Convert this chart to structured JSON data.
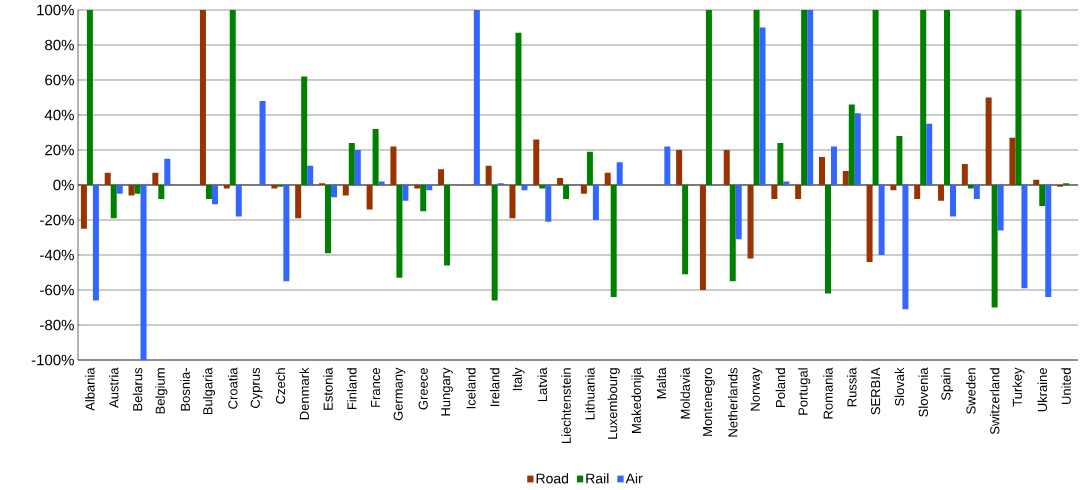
{
  "chart_data": {
    "type": "bar",
    "categories": [
      "Albania",
      "Austria",
      "Belarus",
      "Belgium",
      "Bosnia-",
      "Bulgaria",
      "Croatia",
      "Cyprus",
      "Czech",
      "Denmark",
      "Estonia",
      "Finland",
      "France",
      "Germany",
      "Greece",
      "Hungary",
      "Iceland",
      "Ireland",
      "Italy",
      "Latvia",
      "Liechtenstein",
      "Lithuania",
      "Luxembourg",
      "Makedonija",
      "Malta",
      "Moldavia",
      "Montenegro",
      "Netherlands",
      "Norway",
      "Poland",
      "Portugal",
      "Romania",
      "Russia",
      "SERBIA",
      "Slovak",
      "Slovenia",
      "Spain",
      "Sweden",
      "Switzerland",
      "Turkey",
      "Ukraine",
      "United"
    ],
    "series": [
      {
        "name": "Road",
        "color": "#993300",
        "values": [
          -25,
          7,
          -6,
          7,
          null,
          100,
          -2,
          null,
          -2,
          -19,
          1,
          -6,
          -14,
          22,
          -2,
          9,
          null,
          11,
          -19,
          26,
          4,
          -5,
          7,
          null,
          null,
          20,
          -60,
          20,
          -42,
          -8,
          -8,
          16,
          8,
          -44,
          -3,
          -8,
          -9,
          12,
          50,
          27,
          3,
          -1
        ]
      },
      {
        "name": "Rail",
        "color": "#008000",
        "values": [
          100,
          -19,
          -5,
          -8,
          null,
          -8,
          100,
          null,
          -1,
          62,
          -39,
          24,
          32,
          -53,
          -15,
          -46,
          null,
          -66,
          87,
          -2,
          -8,
          19,
          -64,
          null,
          null,
          -51,
          100,
          -55,
          100,
          24,
          100,
          -62,
          46,
          100,
          28,
          100,
          100,
          -2,
          -70,
          100,
          -12,
          1
        ]
      },
      {
        "name": "Air",
        "color": "#3366ff",
        "values": [
          -66,
          -5,
          -100,
          15,
          null,
          -11,
          -18,
          48,
          -55,
          11,
          -7,
          20,
          2,
          -9,
          -3,
          null,
          100,
          1,
          -3,
          -21,
          null,
          -20,
          13,
          null,
          22,
          null,
          null,
          -31,
          90,
          2,
          100,
          22,
          41,
          -40,
          -71,
          35,
          -18,
          -8,
          -26,
          -59,
          -64,
          null
        ]
      }
    ],
    "ylim": [
      -100,
      100
    ],
    "yticks": [
      {
        "value": -100,
        "label": "-100%"
      },
      {
        "value": -80,
        "label": "-80%"
      },
      {
        "value": -60,
        "label": "-60%"
      },
      {
        "value": -40,
        "label": "-40%"
      },
      {
        "value": -20,
        "label": "-20%"
      },
      {
        "value": 0,
        "label": "0%"
      },
      {
        "value": 20,
        "label": "20%"
      },
      {
        "value": 40,
        "label": "40%"
      },
      {
        "value": 60,
        "label": "60%"
      },
      {
        "value": 80,
        "label": "80%"
      },
      {
        "value": 100,
        "label": "100%"
      }
    ],
    "grid": "y",
    "legend": "bottom"
  }
}
